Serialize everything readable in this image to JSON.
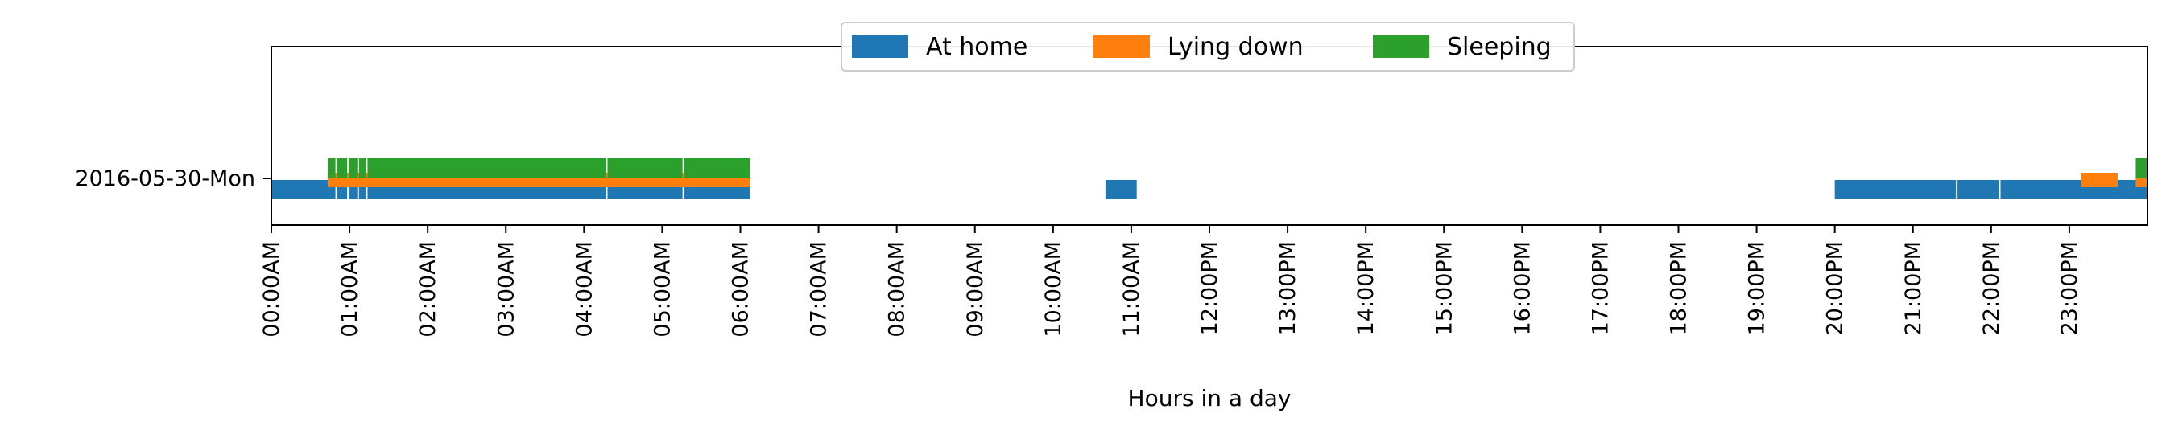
{
  "chart_data": {
    "type": "timeline",
    "xlabel": "Hours in a day",
    "xlim_hours": [
      0,
      24
    ],
    "xtick_labels": [
      "00:00AM",
      "01:00AM",
      "02:00AM",
      "03:00AM",
      "04:00AM",
      "05:00AM",
      "06:00AM",
      "07:00AM",
      "08:00AM",
      "09:00AM",
      "10:00AM",
      "11:00AM",
      "12:00PM",
      "13:00PM",
      "14:00PM",
      "15:00PM",
      "16:00PM",
      "17:00PM",
      "18:00PM",
      "19:00PM",
      "20:00PM",
      "21:00PM",
      "22:00PM",
      "23:00PM"
    ],
    "ytick_labels": [
      "2016-05-30-Mon"
    ],
    "legend_position": "upper-center",
    "grid": false,
    "series": [
      {
        "name": "At home",
        "color": "#1f77b4",
        "segments": [
          [
            0.0,
            0.82
          ],
          [
            0.84,
            0.97
          ],
          [
            0.99,
            1.1
          ],
          [
            1.12,
            1.21
          ],
          [
            1.23,
            4.28
          ],
          [
            4.3,
            5.26
          ],
          [
            5.28,
            6.12
          ],
          [
            10.67,
            11.07
          ],
          [
            20.0,
            21.55
          ],
          [
            21.57,
            22.1
          ],
          [
            22.12,
            24.0
          ]
        ]
      },
      {
        "name": "Lying down",
        "color": "#ff7f0e",
        "segments": [
          [
            0.72,
            6.12
          ],
          [
            23.15,
            23.62
          ],
          [
            23.85,
            24.0
          ]
        ]
      },
      {
        "name": "Sleeping",
        "color": "#2ca02c",
        "segments": [
          [
            0.72,
            0.82
          ],
          [
            0.84,
            0.97
          ],
          [
            0.99,
            1.1
          ],
          [
            1.12,
            1.21
          ],
          [
            1.23,
            4.28
          ],
          [
            4.3,
            5.26
          ],
          [
            5.28,
            6.12
          ],
          [
            23.85,
            24.0
          ]
        ]
      }
    ]
  }
}
